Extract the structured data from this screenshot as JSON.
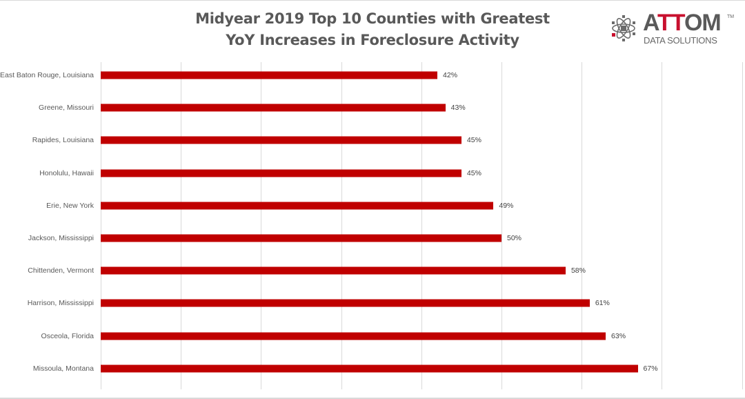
{
  "chart_data": {
    "type": "bar",
    "orientation": "horizontal",
    "title": "Midyear 2019 Top 10 Counties with Greatest YoY Increases in Foreclosure Activity",
    "title_lines": [
      "Midyear 2019 Top 10 Counties with Greatest",
      "YoY Increases in Foreclosure Activity"
    ],
    "categories": [
      "East Baton Rouge, Louisiana",
      "Greene, Missouri",
      "Rapides, Louisiana",
      "Honolulu, Hawaii",
      "Erie, New York",
      "Jackson, Mississippi",
      "Chittenden, Vermont",
      "Harrison, Mississippi",
      "Osceola, Florida",
      "Missoula, Montana"
    ],
    "values": [
      42,
      43,
      45,
      45,
      49,
      50,
      58,
      61,
      63,
      67
    ],
    "value_labels": [
      "42%",
      "43%",
      "45%",
      "45%",
      "49%",
      "50%",
      "58%",
      "61%",
      "63%",
      "67%"
    ],
    "xlabel": "",
    "ylabel": "",
    "xlim": [
      0,
      80
    ],
    "grid": "vertical",
    "gridline_step": 10,
    "legend": "none",
    "bar_color": "#c00000"
  },
  "logo": {
    "word_part1": "A",
    "word_red": "TT",
    "word_part2": "OM",
    "trademark": "TM",
    "subtitle": "DATA SOLUTIONS"
  },
  "colors": {
    "bar": "#c00000",
    "title": "#595959",
    "brand_red": "#c8102e",
    "grid": "#d9d9d9"
  }
}
